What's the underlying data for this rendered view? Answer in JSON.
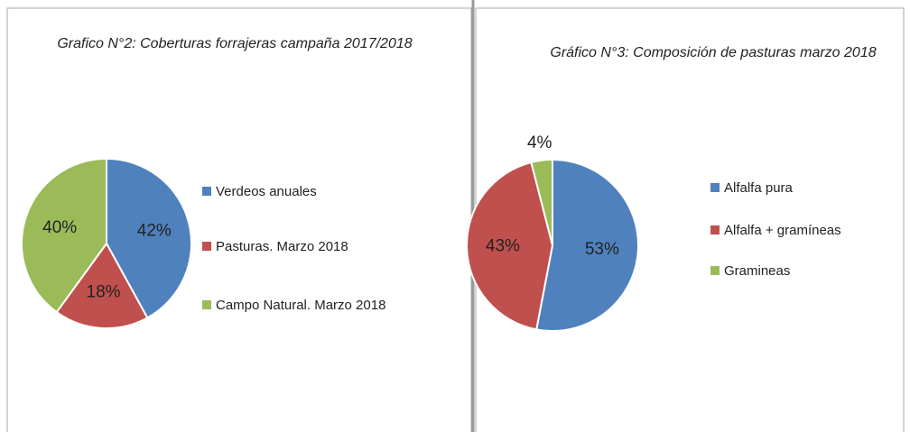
{
  "chart_data": [
    {
      "type": "pie",
      "title": "Grafico N°2: Coberturas forrajeras campaña 2017/2018",
      "categories": [
        "Verdeos anuales",
        "Pasturas. Marzo 2018",
        "Campo Natural. Marzo 2018"
      ],
      "values": [
        42,
        18,
        40
      ],
      "value_labels": [
        "42%",
        "18%",
        "40%"
      ],
      "colors": [
        "#4f81bd",
        "#c0504d",
        "#9bbb59"
      ],
      "legend": "right"
    },
    {
      "type": "pie",
      "title": "Gráfico N°3: Composición de pasturas marzo 2018",
      "categories": [
        "Alfalfa pura",
        "Alfalfa + gramíneas",
        "Gramineas"
      ],
      "values": [
        53,
        43,
        4
      ],
      "value_labels": [
        "53%",
        "43%",
        "4%"
      ],
      "colors": [
        "#4f81bd",
        "#c0504d",
        "#9bbb59"
      ],
      "legend": "right"
    }
  ]
}
